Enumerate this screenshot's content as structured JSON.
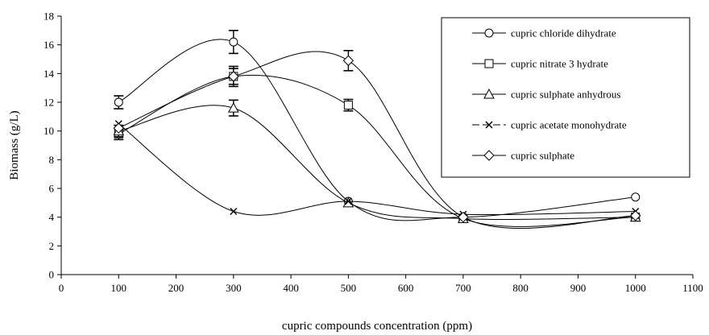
{
  "chart_data": {
    "type": "line",
    "xlabel": "cupric compounds concentration (ppm)",
    "ylabel": "Biomass (g/L)",
    "xlim": [
      0,
      1100
    ],
    "ylim": [
      0,
      18
    ],
    "xticks": [
      0,
      100,
      200,
      300,
      400,
      500,
      600,
      700,
      800,
      900,
      1000,
      1100
    ],
    "yticks": [
      0,
      2,
      4,
      6,
      8,
      10,
      12,
      14,
      16,
      18
    ],
    "grid": false,
    "legend_position": "top-right",
    "x": [
      100,
      300,
      500,
      700,
      1000
    ],
    "series": [
      {
        "name": "cupric chloride dihydrate",
        "marker": "circle",
        "values": [
          12.0,
          16.2,
          5.1,
          4.0,
          5.4
        ],
        "error": [
          0.45,
          0.8,
          0,
          0,
          0
        ]
      },
      {
        "name": "cupric nitrate 3 hydrate",
        "marker": "square",
        "values": [
          9.8,
          13.8,
          11.8,
          3.9,
          4.0
        ],
        "error": [
          0.4,
          0.7,
          0.4,
          0,
          0
        ]
      },
      {
        "name": "cupric sulphate anhydrous",
        "marker": "triangle",
        "values": [
          10.0,
          11.6,
          5.0,
          3.9,
          4.0
        ],
        "error": [
          0.4,
          0.55,
          0,
          0,
          0
        ]
      },
      {
        "name": "cupric acetate monohydrate",
        "marker": "x",
        "values": [
          10.5,
          4.4,
          5.1,
          4.2,
          4.4
        ],
        "error": [
          0,
          0,
          0,
          0,
          0
        ]
      },
      {
        "name": "cupric sulphate",
        "marker": "diamond",
        "values": [
          10.2,
          13.8,
          14.9,
          4.0,
          4.1
        ],
        "error": [
          0,
          0.55,
          0.7,
          0,
          0
        ]
      }
    ]
  }
}
